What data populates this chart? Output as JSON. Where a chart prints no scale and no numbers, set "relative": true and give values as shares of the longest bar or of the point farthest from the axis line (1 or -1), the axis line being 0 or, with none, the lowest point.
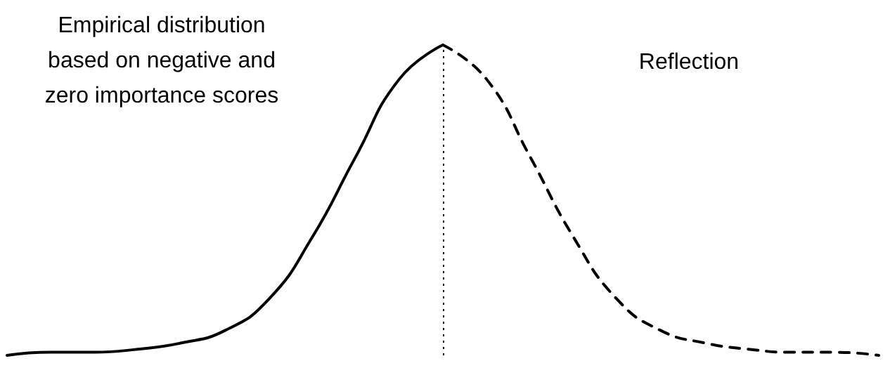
{
  "chart_data": {
    "type": "line",
    "relative": true,
    "categories": [
      null,
      null,
      null,
      null,
      null,
      null,
      null,
      null,
      null,
      null,
      null,
      null,
      null,
      null,
      null,
      null,
      null,
      null,
      null,
      null,
      null
    ],
    "series": [
      {
        "color": "#000000",
        "line_style": "solid",
        "values": [
          0,
          0.01,
          0.01,
          0.02,
          0.04,
          0.08,
          0.18,
          0.38,
          0.64,
          0.89,
          1,
          null,
          null,
          null,
          null,
          null,
          null,
          null,
          null,
          null,
          null
        ]
      },
      {
        "color": "#000000",
        "line_style": "dashed",
        "values": [
          null,
          null,
          null,
          null,
          null,
          null,
          null,
          null,
          null,
          null,
          1,
          0.89,
          0.64,
          0.38,
          0.18,
          0.08,
          0.04,
          0.02,
          0.01,
          0.01,
          0
        ]
      }
    ],
    "annotations": [
      "Empirical distribution\nbased on negative and\nzero importance scores",
      "Reflection"
    ],
    "marker": "none",
    "grid": false
  }
}
